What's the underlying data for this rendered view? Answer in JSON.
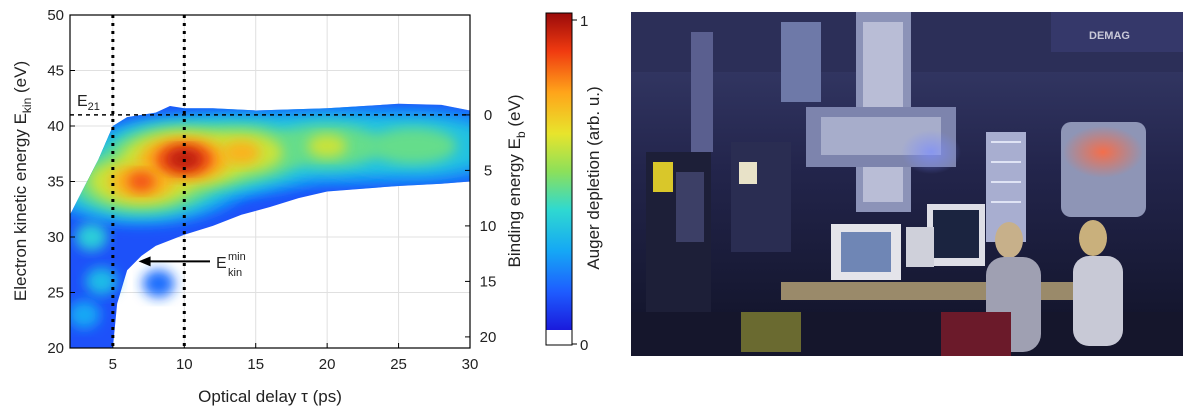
{
  "chart_data": {
    "type": "heatmap",
    "x": {
      "label": "Optical delay τ (ps)",
      "range": [
        2,
        30
      ],
      "ticks": [
        5,
        10,
        15,
        20,
        25,
        30
      ]
    },
    "y_left": {
      "label_main": "Electron kinetic energy E",
      "label_sub": "kin",
      "label_unit": " (eV)",
      "range": [
        20,
        50
      ],
      "ticks": [
        20,
        25,
        30,
        35,
        40,
        45,
        50
      ]
    },
    "y_right": {
      "label_main": "Binding energy E",
      "label_sub": "b",
      "label_unit": " (eV)",
      "ticks": [
        {
          "label": "0",
          "ekin": 41
        },
        {
          "label": "5",
          "ekin": 36
        },
        {
          "label": "10",
          "ekin": 31
        },
        {
          "label": "15",
          "ekin": 26
        },
        {
          "label": "20",
          "ekin": 21
        }
      ]
    },
    "colorbar": {
      "label": "Auger depletion (arb. u.)",
      "range": [
        0,
        1
      ],
      "tick_top": "1",
      "tick_bottom": "0"
    },
    "grid": true,
    "vertical_dashed_lines": [
      5,
      10
    ],
    "horizontal_dashed_line": 41,
    "annotations": {
      "e21": {
        "main": "E",
        "sub": "21"
      },
      "ekin_min": {
        "main": "E",
        "sub": "kin",
        "sup": "min",
        "arrow_to": [
          6.8,
          27.8
        ]
      }
    },
    "upper_edge": [
      [
        2,
        32
      ],
      [
        3,
        34.5
      ],
      [
        4,
        37
      ],
      [
        5,
        40
      ],
      [
        6,
        40.8
      ],
      [
        8,
        41.2
      ],
      [
        9,
        41.8
      ],
      [
        10,
        41.6
      ],
      [
        12,
        41.6
      ],
      [
        15,
        41.4
      ],
      [
        20,
        41.6
      ],
      [
        25,
        42
      ],
      [
        28,
        41.9
      ],
      [
        30,
        41.4
      ]
    ],
    "lower_edge": [
      [
        30,
        35
      ],
      [
        28,
        34.8
      ],
      [
        25,
        34.6
      ],
      [
        20,
        34.1
      ],
      [
        18,
        33.5
      ],
      [
        16,
        32.7
      ],
      [
        14,
        32
      ],
      [
        12,
        31
      ],
      [
        10,
        30.2
      ],
      [
        8,
        29.2
      ],
      [
        7,
        28.3
      ],
      [
        6,
        27
      ],
      [
        5.3,
        24
      ],
      [
        5,
        20
      ],
      [
        2,
        20
      ]
    ],
    "intensity": {
      "peak": [
        10,
        37,
        0.98
      ],
      "blobs": [
        [
          10,
          37,
          0.98
        ],
        [
          7,
          35,
          0.85
        ],
        [
          14,
          37.6,
          0.75
        ],
        [
          20,
          38.2,
          0.6
        ],
        [
          26,
          38.2,
          0.55
        ]
      ]
    }
  },
  "photo": {
    "banner_text": "DEMAG"
  }
}
